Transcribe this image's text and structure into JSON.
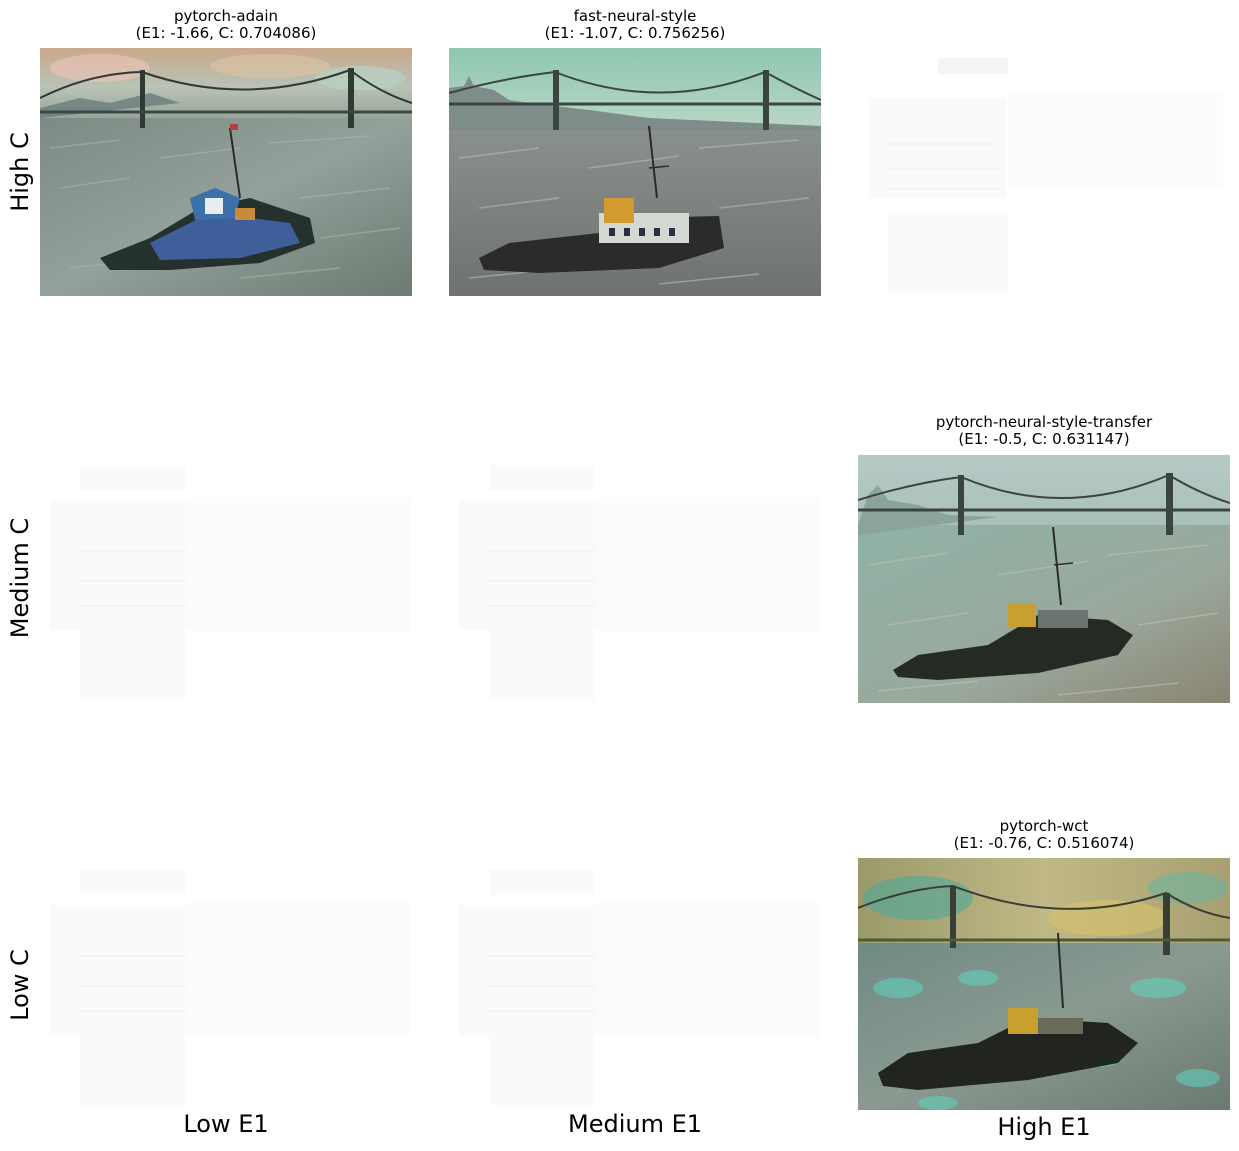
{
  "rows": [
    "High C",
    "Medium C",
    "Low C"
  ],
  "columns": [
    "Low E1",
    "Medium E1",
    "High E1"
  ],
  "panels": {
    "adain": {
      "name": "pytorch-adain",
      "metrics": "(E1: -1.66, C: 0.704086)"
    },
    "fast": {
      "name": "fast-neural-style",
      "metrics": "(E1: -1.07, C: 0.756256)"
    },
    "nst": {
      "name": "pytorch-neural-style-transfer",
      "metrics": "(E1: -0.5, C: 0.631147)"
    },
    "wct": {
      "name": "pytorch-wct",
      "metrics": "(E1: -0.76, C: 0.516074)"
    }
  }
}
